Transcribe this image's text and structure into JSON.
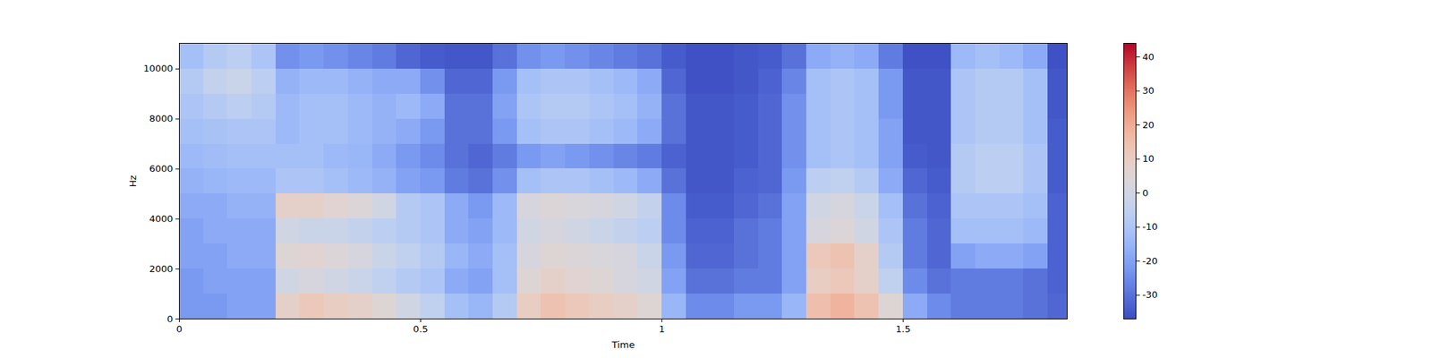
{
  "chart_data": {
    "type": "heatmap",
    "x_label": "Time",
    "y_label": "Hz",
    "xlim": [
      0,
      1.84
    ],
    "xticks": [
      0,
      0.5,
      1,
      1.5
    ],
    "ylim": [
      0,
      11025
    ],
    "yticks": [
      0,
      2000,
      4000,
      6000,
      8000,
      10000
    ],
    "colorbar": {
      "range": [
        -37,
        44
      ],
      "ticks": [
        -30,
        -20,
        -10,
        0,
        10,
        20,
        30,
        40
      ]
    },
    "cells": {
      "x_edges": [
        0,
        0.05,
        0.1,
        0.15,
        0.2,
        0.25,
        0.3,
        0.35,
        0.4,
        0.45,
        0.5,
        0.55,
        0.6,
        0.65,
        0.7,
        0.75,
        0.8,
        0.85,
        0.9,
        0.95,
        1,
        1.05,
        1.1,
        1.15,
        1.2,
        1.25,
        1.3,
        1.35,
        1.4,
        1.45,
        1.5,
        1.55,
        1.6,
        1.65,
        1.7,
        1.75,
        1.8,
        1.85
      ],
      "y_edges": [
        0,
        1000,
        2000,
        3000,
        4000,
        5000,
        6000,
        7000,
        8000,
        9000,
        10000,
        11025
      ],
      "values": [
        [
          -22,
          -22,
          -20,
          -20,
          8,
          12,
          10,
          8,
          5,
          0,
          -5,
          -12,
          -15,
          -8,
          10,
          14,
          12,
          10,
          8,
          5,
          -15,
          -25,
          -25,
          -22,
          -22,
          -15,
          15,
          18,
          14,
          5,
          -18,
          -25,
          -28,
          -28,
          -28,
          -30,
          -32
        ],
        [
          -22,
          -20,
          -20,
          -20,
          0,
          2,
          0,
          -2,
          -5,
          -8,
          -10,
          -18,
          -20,
          -12,
          5,
          8,
          6,
          5,
          2,
          0,
          -20,
          -30,
          -30,
          -28,
          -28,
          -20,
          10,
          12,
          8,
          -5,
          -25,
          -30,
          -28,
          -28,
          -28,
          -30,
          -33
        ],
        [
          -20,
          -20,
          -18,
          -18,
          5,
          6,
          4,
          2,
          -2,
          -5,
          -8,
          -15,
          -18,
          -12,
          2,
          5,
          4,
          3,
          2,
          -2,
          -22,
          -32,
          -32,
          -30,
          -28,
          -20,
          12,
          14,
          8,
          -8,
          -28,
          -32,
          -20,
          -18,
          -18,
          -20,
          -33
        ],
        [
          -20,
          -18,
          -18,
          -18,
          0,
          -2,
          -2,
          -4,
          -6,
          -8,
          -10,
          -18,
          -20,
          -14,
          0,
          2,
          0,
          -2,
          -4,
          -6,
          -25,
          -33,
          -33,
          -30,
          -28,
          -20,
          2,
          4,
          0,
          -10,
          -28,
          -32,
          -12,
          -12,
          -12,
          -14,
          -33
        ],
        [
          -18,
          -18,
          -16,
          -16,
          8,
          8,
          6,
          4,
          0,
          -8,
          -10,
          -18,
          -22,
          -14,
          2,
          4,
          3,
          2,
          0,
          -4,
          -25,
          -34,
          -34,
          -32,
          -30,
          -20,
          0,
          2,
          -2,
          -12,
          -30,
          -33,
          -10,
          -10,
          -10,
          -12,
          -33
        ],
        [
          -16,
          -15,
          -14,
          -14,
          -10,
          -10,
          -12,
          -14,
          -16,
          -20,
          -22,
          -28,
          -30,
          -24,
          -12,
          -10,
          -10,
          -12,
          -14,
          -18,
          -30,
          -35,
          -35,
          -33,
          -32,
          -22,
          -6,
          -5,
          -8,
          -18,
          -32,
          -34,
          -8,
          -6,
          -6,
          -10,
          -34
        ],
        [
          -14,
          -13,
          -12,
          -12,
          -12,
          -12,
          -14,
          -15,
          -18,
          -22,
          -25,
          -30,
          -32,
          -28,
          -22,
          -20,
          -22,
          -24,
          -26,
          -28,
          -33,
          -35,
          -35,
          -34,
          -32,
          -24,
          -12,
          -10,
          -12,
          -20,
          -34,
          -35,
          -8,
          -6,
          -6,
          -10,
          -34
        ],
        [
          -12,
          -11,
          -10,
          -10,
          -14,
          -12,
          -12,
          -14,
          -16,
          -18,
          -22,
          -30,
          -30,
          -22,
          -12,
          -10,
          -10,
          -12,
          -14,
          -18,
          -30,
          -35,
          -35,
          -34,
          -32,
          -24,
          -12,
          -10,
          -12,
          -20,
          -35,
          -35,
          -10,
          -8,
          -8,
          -12,
          -34
        ],
        [
          -10,
          -8,
          -6,
          -8,
          -14,
          -12,
          -12,
          -14,
          -16,
          -14,
          -18,
          -30,
          -30,
          -20,
          -10,
          -8,
          -8,
          -10,
          -12,
          -16,
          -30,
          -35,
          -35,
          -34,
          -32,
          -24,
          -12,
          -10,
          -12,
          -22,
          -35,
          -35,
          -10,
          -8,
          -8,
          -12,
          -35
        ],
        [
          -8,
          -4,
          -2,
          -6,
          -16,
          -14,
          -14,
          -16,
          -18,
          -18,
          -24,
          -32,
          -32,
          -22,
          -12,
          -10,
          -10,
          -12,
          -14,
          -18,
          -32,
          -36,
          -36,
          -35,
          -33,
          -26,
          -12,
          -10,
          -12,
          -22,
          -35,
          -35,
          -10,
          -8,
          -8,
          -12,
          -35
        ],
        [
          -12,
          -8,
          -6,
          -10,
          -24,
          -22,
          -24,
          -26,
          -28,
          -32,
          -34,
          -35,
          -35,
          -30,
          -24,
          -22,
          -24,
          -26,
          -28,
          -30,
          -34,
          -36,
          -36,
          -35,
          -34,
          -30,
          -18,
          -16,
          -18,
          -28,
          -36,
          -36,
          -14,
          -12,
          -14,
          -18,
          -36
        ]
      ]
    }
  }
}
